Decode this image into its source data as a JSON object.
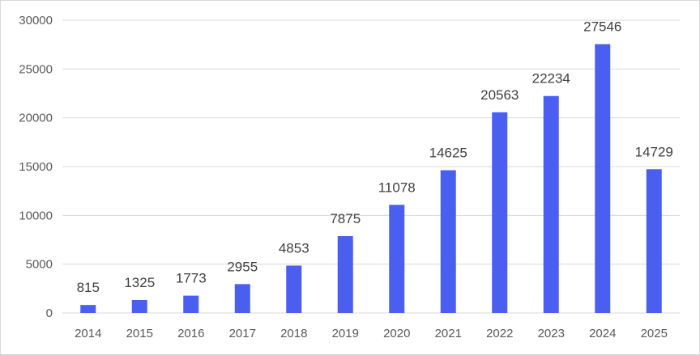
{
  "chart_data": {
    "type": "bar",
    "title": "",
    "xlabel": "",
    "ylabel": "",
    "categories": [
      "2014",
      "2015",
      "2016",
      "2017",
      "2018",
      "2019",
      "2020",
      "2021",
      "2022",
      "2023",
      "2024",
      "2025"
    ],
    "series": [
      {
        "values": [
          815,
          1325,
          1773,
          2955,
          4853,
          7875,
          11078,
          14625,
          20563,
          22234,
          27546,
          14729
        ],
        "color": "#4a5ef0"
      }
    ],
    "ylim": [
      0,
      30000
    ],
    "yticks": [
      0,
      5000,
      10000,
      15000,
      20000,
      25000,
      30000
    ],
    "grid": true,
    "legend": "none",
    "data_labels": true
  }
}
